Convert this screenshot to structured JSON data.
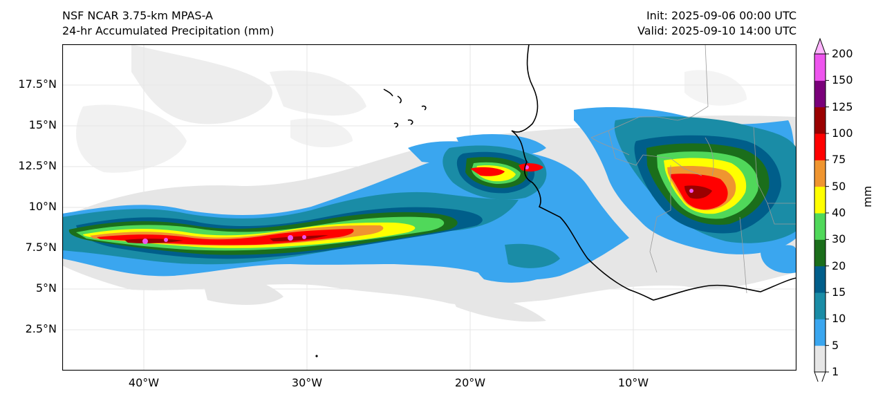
{
  "header": {
    "model": "NSF NCAR 3.75-km MPAS-A",
    "field": "24-hr Accumulated Precipitation (mm)",
    "init": "Init: 2025-09-06 00:00 UTC",
    "valid": "Valid: 2025-09-10 14:00 UTC"
  },
  "map": {
    "lon_range": [
      -45,
      0
    ],
    "lat_range": [
      0,
      20
    ],
    "lat_ticks": [
      {
        "value": 17.5,
        "label": "17.5°N"
      },
      {
        "value": 15,
        "label": "15°N"
      },
      {
        "value": 12.5,
        "label": "12.5°N"
      },
      {
        "value": 10,
        "label": "10°N"
      },
      {
        "value": 7.5,
        "label": "7.5°N"
      },
      {
        "value": 5,
        "label": "5°N"
      },
      {
        "value": 2.5,
        "label": "2.5°N"
      }
    ],
    "lon_ticks": [
      {
        "value": -40,
        "label": "40°W"
      },
      {
        "value": -30,
        "label": "30°W"
      },
      {
        "value": -20,
        "label": "20°W"
      },
      {
        "value": -10,
        "label": "10°W"
      }
    ],
    "coastline_color": "#000000",
    "border_color": "#9a9a9a",
    "gridline_color": "#e6e6e6"
  },
  "colorbar": {
    "unit_label": "mm",
    "levels": [
      {
        "label": "1",
        "color": "#e6e6e6"
      },
      {
        "label": "5",
        "color": "#3aa6ef"
      },
      {
        "label": "10",
        "color": "#1a8ca6"
      },
      {
        "label": "15",
        "color": "#005e8a"
      },
      {
        "label": "20",
        "color": "#1b6e1b"
      },
      {
        "label": "30",
        "color": "#50d85a"
      },
      {
        "label": "40",
        "color": "#ffff00"
      },
      {
        "label": "50",
        "color": "#ef9530"
      },
      {
        "label": "75",
        "color": "#ff0000"
      },
      {
        "label": "100",
        "color": "#9a0000"
      },
      {
        "label": "125",
        "color": "#7a007a"
      },
      {
        "label": "150",
        "color": "#ee55ee"
      },
      {
        "label": "200",
        "color": ""
      }
    ],
    "over_color": "#ffb4ff",
    "under_color": "#ffffff"
  }
}
